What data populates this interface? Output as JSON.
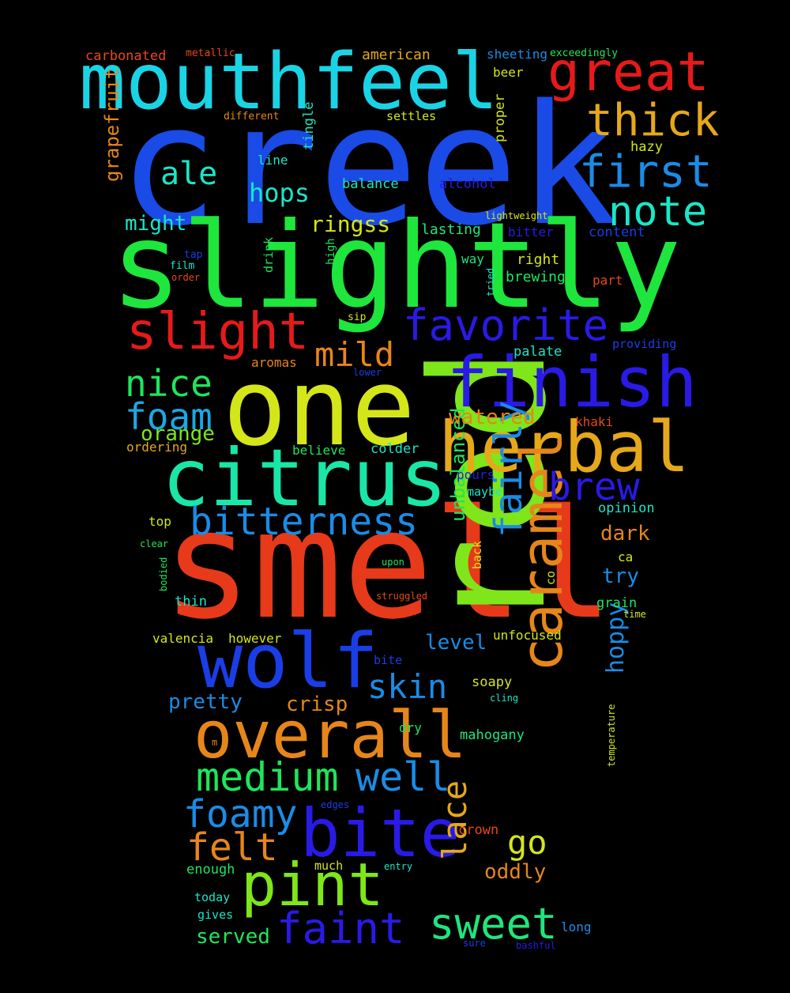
{
  "background": "#000000",
  "words": [
    {
      "text": "creek",
      "color": "#1a4be6"
    },
    {
      "text": "slightly",
      "color": "#1ee63c"
    },
    {
      "text": "smell",
      "color": "#e63a1a"
    },
    {
      "text": "red",
      "color": "#7ee61a"
    },
    {
      "text": "one",
      "color": "#d4e61a"
    },
    {
      "text": "mouthfeel",
      "color": "#1ad4e6"
    },
    {
      "text": "citrus",
      "color": "#1ae6a8"
    },
    {
      "text": "wolf",
      "color": "#1a3ee6"
    },
    {
      "text": "finish",
      "color": "#2a1ae6"
    },
    {
      "text": "herbal",
      "color": "#e6a81a"
    },
    {
      "text": "overall",
      "color": "#e6861a"
    },
    {
      "text": "bite",
      "color": "#2a1ae6"
    },
    {
      "text": "caramel",
      "color": "#e6861a"
    },
    {
      "text": "pint",
      "color": "#7ee61a"
    },
    {
      "text": "great",
      "color": "#e61a1a"
    },
    {
      "text": "thick",
      "color": "#e6a81a"
    },
    {
      "text": "first",
      "color": "#1a8ce6"
    },
    {
      "text": "note",
      "color": "#1ae6c8"
    },
    {
      "text": "favorite",
      "color": "#2a1ae6"
    },
    {
      "text": "slight",
      "color": "#e61a1a"
    },
    {
      "text": "bitterness",
      "color": "#1a8ce6"
    },
    {
      "text": "medium",
      "color": "#1ee65a"
    },
    {
      "text": "well",
      "color": "#1a8ce6"
    },
    {
      "text": "foamy",
      "color": "#1a8ce6"
    },
    {
      "text": "sweet",
      "color": "#1ee67e"
    },
    {
      "text": "faint",
      "color": "#2a1ae6"
    },
    {
      "text": "felt",
      "color": "#e6861a"
    },
    {
      "text": "brew",
      "color": "#2a1ae6"
    },
    {
      "text": "fairly",
      "color": "#1a8ce6"
    },
    {
      "text": "nice",
      "color": "#1ee65a"
    },
    {
      "text": "foam",
      "color": "#1aa8e6"
    },
    {
      "text": "ale",
      "color": "#1ae6c8"
    },
    {
      "text": "hops",
      "color": "#1ae6c8"
    },
    {
      "text": "mild",
      "color": "#e6861a"
    },
    {
      "text": "skin",
      "color": "#1a8ce6"
    },
    {
      "text": "lace",
      "color": "#e6a81a"
    },
    {
      "text": "go",
      "color": "#d4e61a"
    },
    {
      "text": "hoppy",
      "color": "#1a8ce6"
    },
    {
      "text": "crisp",
      "color": "#e6861a"
    },
    {
      "text": "pretty",
      "color": "#1a8ce6"
    },
    {
      "text": "orange",
      "color": "#7ee61a"
    },
    {
      "text": "might",
      "color": "#1ae6c8"
    },
    {
      "text": "ringss",
      "color": "#d4e61a"
    },
    {
      "text": "grapefruit",
      "color": "#e6861a"
    },
    {
      "text": "unbalanced",
      "color": "#1ee65a"
    },
    {
      "text": "watered",
      "color": "#e6861a"
    },
    {
      "text": "level",
      "color": "#1a8ce6"
    },
    {
      "text": "oddly",
      "color": "#e6861a"
    },
    {
      "text": "served",
      "color": "#1ee65a"
    },
    {
      "text": "dark",
      "color": "#e6861a"
    },
    {
      "text": "try",
      "color": "#1a8ce6"
    },
    {
      "text": "carbonated",
      "color": "#e6481a"
    },
    {
      "text": "american",
      "color": "#e6a81a"
    },
    {
      "text": "sheeting",
      "color": "#1a8ce6"
    },
    {
      "text": "beer",
      "color": "#d4e61a"
    },
    {
      "text": "metallic",
      "color": "#e6481a"
    },
    {
      "text": "exceedingly",
      "color": "#1ee65a"
    },
    {
      "text": "different",
      "color": "#e6861a"
    },
    {
      "text": "settles",
      "color": "#d4e61a"
    },
    {
      "text": "hazy",
      "color": "#d4e61a"
    },
    {
      "text": "proper",
      "color": "#d4e61a"
    },
    {
      "text": "tingle",
      "color": "#1ae6c8"
    },
    {
      "text": "line",
      "color": "#1ae6c8"
    },
    {
      "text": "balance",
      "color": "#1ae6c8"
    },
    {
      "text": "alcohol",
      "color": "#2a1ae6"
    },
    {
      "text": "lightweight",
      "color": "#d4e61a"
    },
    {
      "text": "bitter",
      "color": "#2a1ae6"
    },
    {
      "text": "content",
      "color": "#1a3ee6"
    },
    {
      "text": "lasting",
      "color": "#1ee67e"
    },
    {
      "text": "way",
      "color": "#1ee67e"
    },
    {
      "text": "right",
      "color": "#d4e61a"
    },
    {
      "text": "brewing",
      "color": "#1ee65a"
    },
    {
      "text": "part",
      "color": "#e6481a"
    },
    {
      "text": "tap",
      "color": "#1a3ee6"
    },
    {
      "text": "film",
      "color": "#1ae6c8"
    },
    {
      "text": "order",
      "color": "#e6481a"
    },
    {
      "text": "drink",
      "color": "#1ee65a"
    },
    {
      "text": "high",
      "color": "#1ee65a"
    },
    {
      "text": "tried",
      "color": "#1ae6c8"
    },
    {
      "text": "sip",
      "color": "#d4e61a"
    },
    {
      "text": "providing",
      "color": "#1a3ee6"
    },
    {
      "text": "palate",
      "color": "#1ae6c8"
    },
    {
      "text": "aromas",
      "color": "#e6861a"
    },
    {
      "text": "lower",
      "color": "#1a3ee6"
    },
    {
      "text": "khaki",
      "color": "#e6481a"
    },
    {
      "text": "ordering",
      "color": "#e6a81a"
    },
    {
      "text": "believe",
      "color": "#1ee65a"
    },
    {
      "text": "colder",
      "color": "#1ae6c8"
    },
    {
      "text": "pours",
      "color": "#2a1ae6"
    },
    {
      "text": "maybe",
      "color": "#1ae6c8"
    },
    {
      "text": "opinion",
      "color": "#1ae6c8"
    },
    {
      "text": "top",
      "color": "#d4e61a"
    },
    {
      "text": "clear",
      "color": "#1ee65a"
    },
    {
      "text": "upon",
      "color": "#1ee65a"
    },
    {
      "text": "back",
      "color": "#d4e61a"
    },
    {
      "text": "co",
      "color": "#d4e61a"
    },
    {
      "text": "ca",
      "color": "#d4e61a"
    },
    {
      "text": "bodied",
      "color": "#1ee65a"
    },
    {
      "text": "thin",
      "color": "#1ae6c8"
    },
    {
      "text": "struggled",
      "color": "#e6481a"
    },
    {
      "text": "grain",
      "color": "#1ee65a"
    },
    {
      "text": "time",
      "color": "#d4e61a"
    },
    {
      "text": "valencia",
      "color": "#d4e61a"
    },
    {
      "text": "however",
      "color": "#d4e61a"
    },
    {
      "text": "unfocused",
      "color": "#d4e61a"
    },
    {
      "text": "bite",
      "color": "#1a3ee6"
    },
    {
      "text": "soapy",
      "color": "#d4e61a"
    },
    {
      "text": "cling",
      "color": "#1ae6c8"
    },
    {
      "text": "dry",
      "color": "#1ee65a"
    },
    {
      "text": "m",
      "color": "#e6861a"
    },
    {
      "text": "mahogany",
      "color": "#1ee67e"
    },
    {
      "text": "temperature",
      "color": "#d4e61a"
    },
    {
      "text": "edges",
      "color": "#1a3ee6"
    },
    {
      "text": "crown",
      "color": "#e6481a"
    },
    {
      "text": "enough",
      "color": "#1ee65a"
    },
    {
      "text": "much",
      "color": "#d4e61a"
    },
    {
      "text": "entry",
      "color": "#1ae6c8"
    },
    {
      "text": "today",
      "color": "#1ae6c8"
    },
    {
      "text": "gives",
      "color": "#1ae6c8"
    },
    {
      "text": "long",
      "color": "#1a8ce6"
    },
    {
      "text": "sure",
      "color": "#1a3ee6"
    },
    {
      "text": "bashful",
      "color": "#2a1ae6"
    }
  ]
}
